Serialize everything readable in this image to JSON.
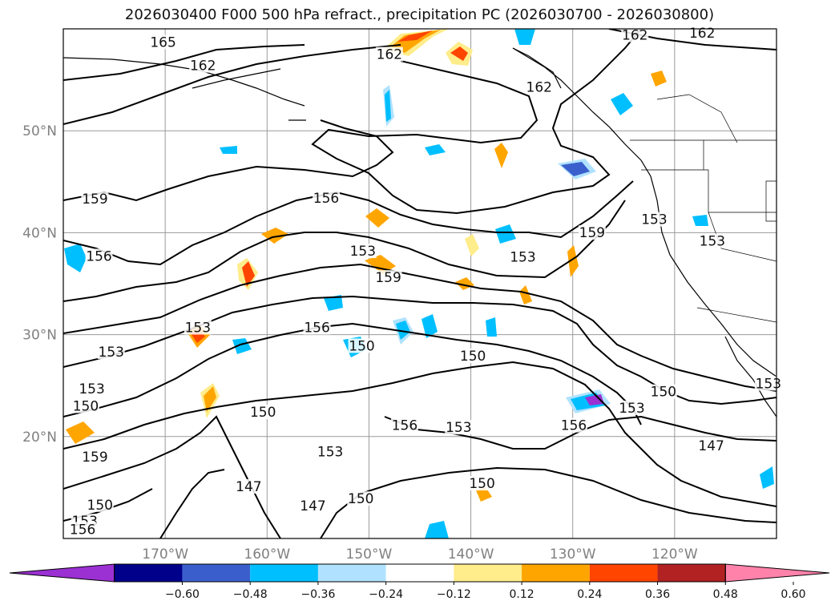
{
  "title": "2026030400 F000 500 hPa refract., precipitation PC (2026030700 - 2026030800)",
  "map": {
    "lon_range": [
      -180,
      -110
    ],
    "lat_range": [
      10,
      60
    ],
    "lat_ticks": [
      {
        "value": 20,
        "label": "20°N"
      },
      {
        "value": 30,
        "label": "30°N"
      },
      {
        "value": 40,
        "label": "40°N"
      },
      {
        "value": 50,
        "label": "50°N"
      }
    ],
    "lon_ticks": [
      {
        "value": -170,
        "label": "170°W"
      },
      {
        "value": -160,
        "label": "160°W"
      },
      {
        "value": -150,
        "label": "150°W"
      },
      {
        "value": -140,
        "label": "140°W"
      },
      {
        "value": -130,
        "label": "130°W"
      },
      {
        "value": -120,
        "label": "120°W"
      }
    ],
    "contour_labels": [
      {
        "text": "165",
        "lon": -170.2,
        "lat": 58.4
      },
      {
        "text": "162",
        "lon": -166.3,
        "lat": 56.1
      },
      {
        "text": "162",
        "lon": -148.0,
        "lat": 57.2
      },
      {
        "text": "162",
        "lon": -133.3,
        "lat": 54.0
      },
      {
        "text": "162",
        "lon": -123.9,
        "lat": 59.1
      },
      {
        "text": "162",
        "lon": -117.3,
        "lat": 59.3
      },
      {
        "text": "159",
        "lon": -176.9,
        "lat": 43.0
      },
      {
        "text": "156",
        "lon": -176.5,
        "lat": 37.4
      },
      {
        "text": "156",
        "lon": -154.2,
        "lat": 43.1
      },
      {
        "text": "153",
        "lon": -150.6,
        "lat": 37.9
      },
      {
        "text": "159",
        "lon": -148.1,
        "lat": 35.3
      },
      {
        "text": "153",
        "lon": -134.9,
        "lat": 37.3
      },
      {
        "text": "159",
        "lon": -128.1,
        "lat": 39.7
      },
      {
        "text": "153",
        "lon": -122.0,
        "lat": 41.0
      },
      {
        "text": "153",
        "lon": -116.3,
        "lat": 38.9
      },
      {
        "text": "153",
        "lon": -175.3,
        "lat": 28.0
      },
      {
        "text": "153",
        "lon": -177.2,
        "lat": 24.4
      },
      {
        "text": "150",
        "lon": -177.8,
        "lat": 22.7
      },
      {
        "text": "153",
        "lon": -166.8,
        "lat": 30.4
      },
      {
        "text": "156",
        "lon": -155.1,
        "lat": 30.4
      },
      {
        "text": "150",
        "lon": -150.7,
        "lat": 28.6
      },
      {
        "text": "150",
        "lon": -139.8,
        "lat": 27.6
      },
      {
        "text": "150",
        "lon": -160.4,
        "lat": 22.1
      },
      {
        "text": "156",
        "lon": -146.5,
        "lat": 20.8
      },
      {
        "text": "153",
        "lon": -141.2,
        "lat": 20.6
      },
      {
        "text": "156",
        "lon": -129.9,
        "lat": 20.8
      },
      {
        "text": "153",
        "lon": -124.2,
        "lat": 22.5
      },
      {
        "text": "150",
        "lon": -121.1,
        "lat": 24.1
      },
      {
        "text": "147",
        "lon": -116.4,
        "lat": 18.8
      },
      {
        "text": "159",
        "lon": -176.9,
        "lat": 17.7
      },
      {
        "text": "153",
        "lon": -153.8,
        "lat": 18.2
      },
      {
        "text": "147",
        "lon": -161.8,
        "lat": 14.8
      },
      {
        "text": "147",
        "lon": -155.5,
        "lat": 12.9
      },
      {
        "text": "150",
        "lon": -150.8,
        "lat": 13.6
      },
      {
        "text": "150",
        "lon": -138.9,
        "lat": 15.1
      },
      {
        "text": "150",
        "lon": -176.4,
        "lat": 13.0
      },
      {
        "text": "153",
        "lon": -177.9,
        "lat": 11.4
      },
      {
        "text": "156",
        "lon": -178.1,
        "lat": 10.6
      },
      {
        "text": "153",
        "lon": -110.8,
        "lat": 24.9
      }
    ]
  },
  "colorbar": {
    "colors": [
      "#9b30d3",
      "#00008b",
      "#3a5fcd",
      "#00bfff",
      "#b0e2ff",
      "#ffffff",
      "#ffec8b",
      "#ffa500",
      "#ff4500",
      "#b22222",
      "#ff82ab"
    ],
    "ticks": [
      "−0.60",
      "−0.48",
      "−0.36",
      "−0.24",
      "−0.12",
      "0.12",
      "0.24",
      "0.36",
      "0.48",
      "0.60"
    ]
  }
}
